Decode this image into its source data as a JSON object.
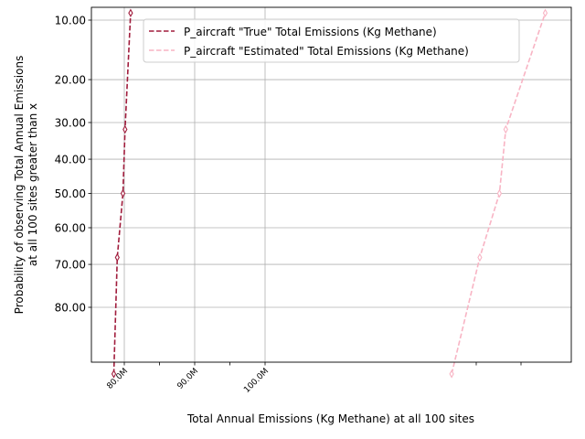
{
  "chart_data": {
    "type": "line",
    "xlabel": "Total Annual Emissions (Kg Methane) at all 100 sites",
    "ylabel_lines": [
      "Probability of observing Total Annual Emissions",
      "at all 100 sites greater than x"
    ],
    "x_ticks": [
      {
        "value": 80000000,
        "label": "80.0M"
      },
      {
        "value": 90000000,
        "label": "90.0M"
      },
      {
        "value": 100000000,
        "label": "100.0M"
      }
    ],
    "y_ticks": [
      {
        "value": 10,
        "label": "10.00"
      },
      {
        "value": 20,
        "label": "20.00"
      },
      {
        "value": 30,
        "label": "30.00"
      },
      {
        "value": 40,
        "label": "40.00"
      },
      {
        "value": 50,
        "label": "50.00"
      },
      {
        "value": 60,
        "label": "60.00"
      },
      {
        "value": 70,
        "label": "70.00"
      },
      {
        "value": 80,
        "label": "80.00"
      }
    ],
    "y_scale": "probit (normal probability), inverted",
    "grid": true,
    "legend_position": "top-center",
    "series": [
      {
        "name": "P_aircraft \"True\" Total Emissions (Kg Methane)",
        "color": "#a01c3c",
        "linestyle": "dashed",
        "marker": "thin-diamond",
        "x": [
          78500000,
          79000000,
          79800000,
          80100000,
          80900000
        ],
        "y": [
          90.9,
          68.2,
          50.0,
          31.8,
          9.1
        ]
      },
      {
        "name": "P_aircraft \"Estimated\" Total Emissions (Kg Methane)",
        "color": "#f8b4c4",
        "linestyle": "dashed",
        "marker": "thin-diamond",
        "x": [
          126500000,
          130500000,
          133300000,
          134200000,
          139800000
        ],
        "y": [
          90.9,
          68.2,
          50.0,
          31.8,
          9.1
        ]
      }
    ]
  }
}
